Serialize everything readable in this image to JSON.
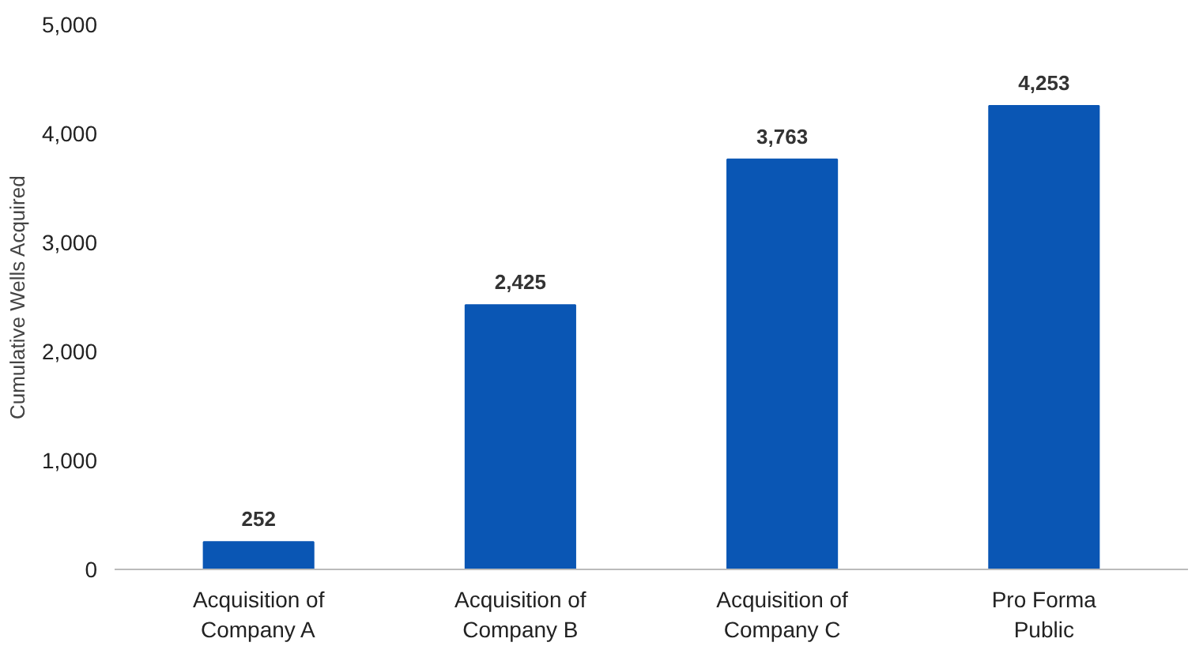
{
  "chart_data": {
    "type": "bar",
    "ylabel": "Cumulative Wells Acquired",
    "categories": [
      "Acquisition of\nCompany A",
      "Acquisition of\nCompany B",
      "Acquisition of\nCompany C",
      "Pro Forma\nPublic"
    ],
    "values": [
      252,
      2425,
      3763,
      4253
    ],
    "color": "#0a56b4",
    "ylim": [
      0,
      5000
    ],
    "yticks": [
      {
        "value": 0,
        "label": "0"
      },
      {
        "value": 1000,
        "label": "1,000"
      },
      {
        "value": 2000,
        "label": "2,000"
      },
      {
        "value": 3000,
        "label": "3,000"
      },
      {
        "value": 4000,
        "label": "4,000"
      },
      {
        "value": 5000,
        "label": "5,000"
      }
    ],
    "value_labels": [
      "252",
      "2,425",
      "3,763",
      "4,253"
    ],
    "grid": false
  }
}
